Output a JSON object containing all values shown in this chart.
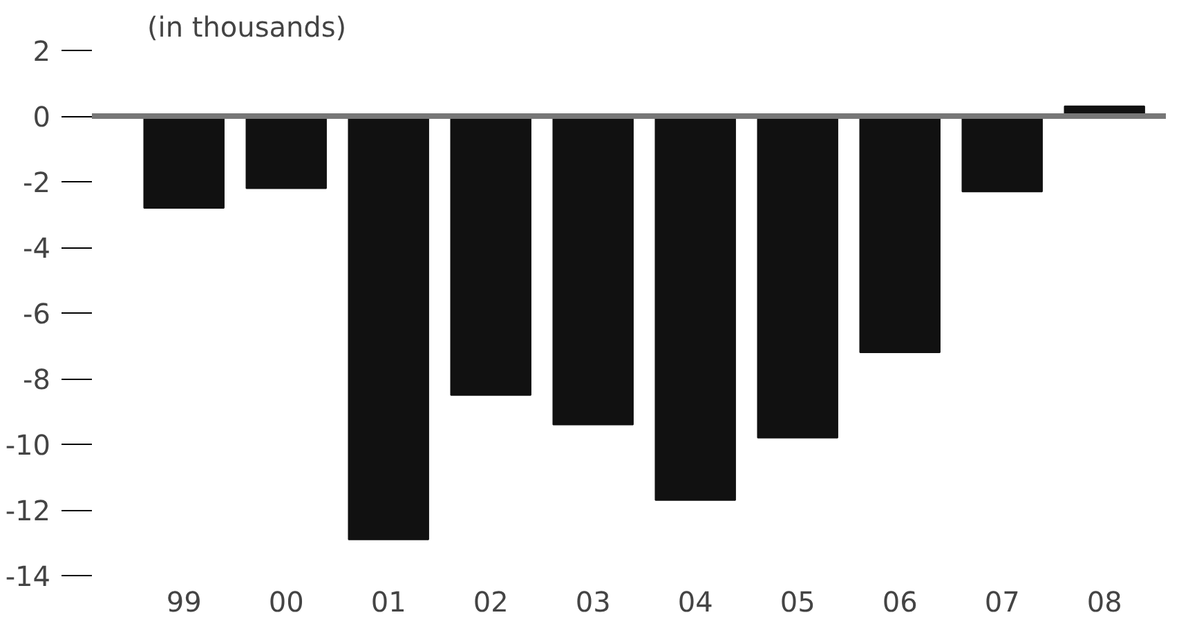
{
  "chart_data": {
    "type": "bar",
    "ylabel": "(in thousands)",
    "categories": [
      "99",
      "00",
      "01",
      "02",
      "03",
      "04",
      "05",
      "06",
      "07",
      "08"
    ],
    "values": [
      -2.8,
      -2.2,
      -12.9,
      -8.5,
      -9.4,
      -11.7,
      -9.8,
      -7.2,
      -2.3,
      0.3
    ],
    "color": "#111111",
    "ylim": [
      -14,
      2
    ],
    "yticks": [
      2,
      0,
      -2,
      -4,
      -6,
      -8,
      -10,
      -12,
      -14
    ],
    "ref_lines": [
      {
        "axis": "y",
        "value": 0,
        "color": "#777777"
      }
    ],
    "grid": false
  }
}
